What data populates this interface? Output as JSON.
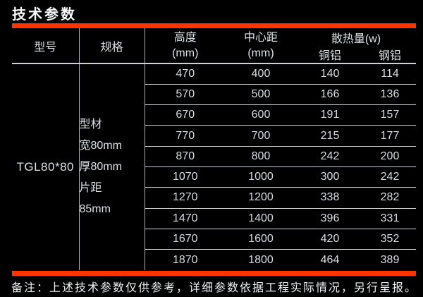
{
  "title": "技术参数",
  "colors": {
    "accent_red": "#ff3300",
    "background": "#000000",
    "text": "#dde2e6"
  },
  "table": {
    "headers": {
      "model": "型号",
      "spec": "规格",
      "height": "高度",
      "height_unit": "(mm)",
      "center_distance": "中心距",
      "center_distance_unit": "(mm)",
      "heat_output": "散热量(w)",
      "copper_aluminum": "铜铝",
      "steel_aluminum": "钢铝"
    },
    "model": "TGL80*80",
    "spec_lines": [
      "型材",
      "宽80mm",
      "厚80mm",
      "片距",
      "85mm"
    ],
    "rows": [
      [
        470,
        400,
        140,
        114
      ],
      [
        570,
        500,
        166,
        136
      ],
      [
        670,
        600,
        191,
        157
      ],
      [
        770,
        700,
        215,
        177
      ],
      [
        870,
        800,
        242,
        200
      ],
      [
        1070,
        1000,
        300,
        242
      ],
      [
        1270,
        1200,
        338,
        282
      ],
      [
        1470,
        1400,
        396,
        331
      ],
      [
        1670,
        1600,
        420,
        352
      ],
      [
        1870,
        1800,
        464,
        389
      ]
    ]
  },
  "note": "备注：上述技术参数仅供参考，详细参数依据工程实际情况，另行呈报。"
}
